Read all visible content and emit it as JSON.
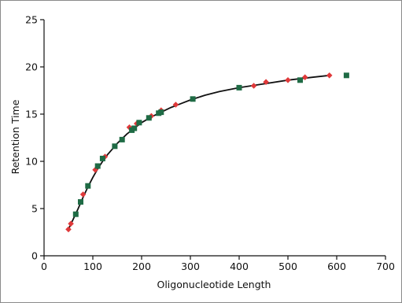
{
  "chart_data": {
    "type": "scatter",
    "title": "",
    "xlabel": "Oligonucleotide Length",
    "ylabel": "Retention Time",
    "xlim": [
      0,
      700
    ],
    "ylim": [
      0,
      25
    ],
    "xticks": [
      0,
      100,
      200,
      300,
      400,
      500,
      600,
      700
    ],
    "yticks": [
      0,
      5,
      10,
      15,
      20,
      25
    ],
    "grid": false,
    "legend": "none",
    "series": [
      {
        "marker": "diamond",
        "color": "#e0393a",
        "points": [
          [
            50,
            2.8
          ],
          [
            55,
            3.4
          ],
          [
            80,
            6.5
          ],
          [
            105,
            9.1
          ],
          [
            125,
            10.5
          ],
          [
            175,
            13.6
          ],
          [
            190,
            14.0
          ],
          [
            220,
            14.8
          ],
          [
            240,
            15.4
          ],
          [
            270,
            16.0
          ],
          [
            430,
            18.0
          ],
          [
            455,
            18.4
          ],
          [
            500,
            18.6
          ],
          [
            535,
            18.9
          ],
          [
            585,
            19.1
          ]
        ]
      },
      {
        "marker": "square",
        "color": "#1f6b45",
        "points": [
          [
            65,
            4.4
          ],
          [
            75,
            5.7
          ],
          [
            90,
            7.4
          ],
          [
            110,
            9.5
          ],
          [
            120,
            10.3
          ],
          [
            145,
            11.6
          ],
          [
            160,
            12.3
          ],
          [
            180,
            13.3
          ],
          [
            185,
            13.5
          ],
          [
            195,
            14.1
          ],
          [
            215,
            14.6
          ],
          [
            235,
            15.1
          ],
          [
            240,
            15.2
          ],
          [
            305,
            16.6
          ],
          [
            400,
            17.8
          ],
          [
            525,
            18.6
          ],
          [
            620,
            19.1
          ]
        ]
      }
    ],
    "fit_curve": {
      "color": "#111111",
      "points": [
        [
          50,
          2.8
        ],
        [
          60,
          3.9
        ],
        [
          70,
          5.0
        ],
        [
          80,
          6.2
        ],
        [
          90,
          7.3
        ],
        [
          100,
          8.3
        ],
        [
          110,
          9.2
        ],
        [
          120,
          10.0
        ],
        [
          130,
          10.7
        ],
        [
          140,
          11.3
        ],
        [
          150,
          11.9
        ],
        [
          160,
          12.4
        ],
        [
          170,
          12.9
        ],
        [
          180,
          13.3
        ],
        [
          190,
          13.7
        ],
        [
          200,
          14.1
        ],
        [
          220,
          14.7
        ],
        [
          240,
          15.2
        ],
        [
          260,
          15.7
        ],
        [
          280,
          16.1
        ],
        [
          300,
          16.5
        ],
        [
          330,
          17.0
        ],
        [
          360,
          17.4
        ],
        [
          400,
          17.8
        ],
        [
          450,
          18.2
        ],
        [
          500,
          18.6
        ],
        [
          550,
          18.9
        ],
        [
          585,
          19.1
        ]
      ]
    }
  }
}
